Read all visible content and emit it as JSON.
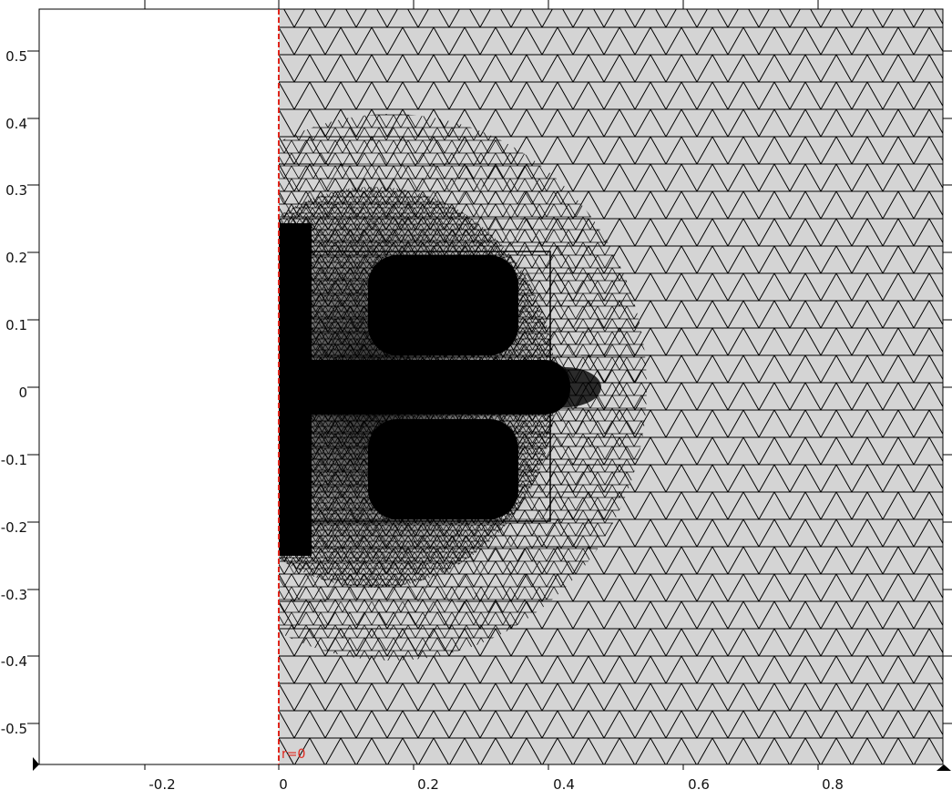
{
  "x_axis": {
    "ticks": [
      "-0.2",
      "0",
      "0.2",
      "0.4",
      "0.6",
      "0.8"
    ]
  },
  "y_axis": {
    "ticks": [
      "0.5",
      "0.4",
      "0.3",
      "0.2",
      "0.1",
      "0",
      "-0.1",
      "-0.2",
      "-0.3",
      "-0.4",
      "-0.5"
    ]
  },
  "axis_of_symmetry_label": "r=0",
  "colors": {
    "domain_fill": "#d4d4d4",
    "mesh_line": "#000000",
    "symmetry_axis": "#e0261c",
    "background": "#ffffff"
  },
  "mesh": {
    "description_none": "",
    "icons": [
      "triangle-marker-icon"
    ]
  }
}
